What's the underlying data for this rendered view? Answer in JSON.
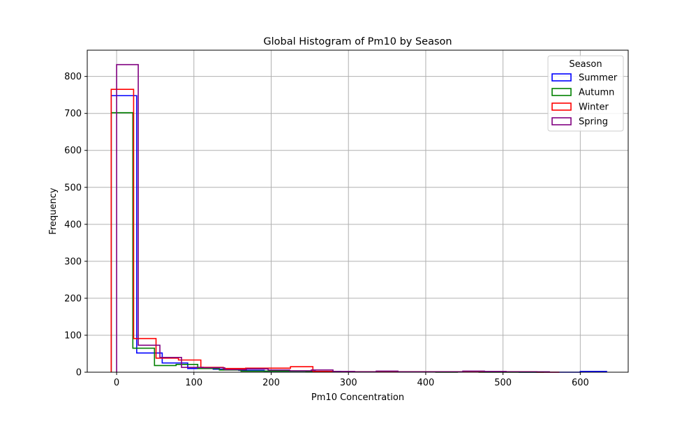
{
  "chart_data": {
    "type": "histogram",
    "title": "Global Histogram of Pm10 by Season",
    "xlabel": "Pm10 Concentration",
    "ylabel": "Frequency",
    "xlim": [
      -38,
      662
    ],
    "ylim": [
      0,
      871
    ],
    "xticks": [
      0,
      100,
      200,
      300,
      400,
      500,
      600
    ],
    "yticks": [
      0,
      100,
      200,
      300,
      400,
      500,
      600,
      700,
      800
    ],
    "grid": true,
    "legend": {
      "title": "Season",
      "position": "upper right"
    },
    "series": [
      {
        "name": "Summer",
        "color": "#0000ff",
        "edges": [
          -7,
          26,
          59,
          92,
          125,
          158,
          191,
          224,
          257,
          290,
          323,
          356,
          389,
          422,
          455,
          488,
          521,
          554,
          587,
          600,
          634
        ],
        "counts": [
          748,
          52,
          25,
          10,
          8,
          5,
          3,
          3,
          2,
          1,
          1,
          1,
          1,
          1,
          1,
          1,
          0,
          0,
          0,
          2
        ]
      },
      {
        "name": "Autumn",
        "color": "#008000",
        "edges": [
          -7,
          21,
          49,
          77,
          105,
          133,
          161,
          189,
          217,
          245,
          273,
          301,
          329,
          357,
          385,
          413,
          441,
          469,
          497,
          525,
          553
        ],
        "counts": [
          702,
          65,
          18,
          21,
          10,
          6,
          3,
          3,
          3,
          2,
          1,
          1,
          1,
          1,
          1,
          0,
          1,
          0,
          0,
          0
        ]
      },
      {
        "name": "Winter",
        "color": "#ff0000",
        "edges": [
          -7,
          22,
          51,
          80,
          109,
          138,
          167,
          196,
          225,
          254,
          283,
          312,
          341,
          370,
          399,
          428,
          457,
          486,
          515,
          544,
          573
        ],
        "counts": [
          765,
          91,
          38,
          33,
          13,
          10,
          11,
          11,
          15,
          2,
          1,
          1,
          1,
          1,
          1,
          1,
          1,
          1,
          1,
          0
        ]
      },
      {
        "name": "Spring",
        "color": "#800080",
        "edges": [
          0,
          28,
          56,
          84,
          112,
          140,
          168,
          196,
          224,
          252,
          280,
          308,
          336,
          364,
          392,
          420,
          448,
          476,
          504,
          532,
          560
        ],
        "counts": [
          832,
          73,
          40,
          13,
          12,
          7,
          9,
          6,
          4,
          6,
          2,
          1,
          3,
          1,
          1,
          1,
          3,
          2,
          1,
          1
        ]
      }
    ]
  }
}
